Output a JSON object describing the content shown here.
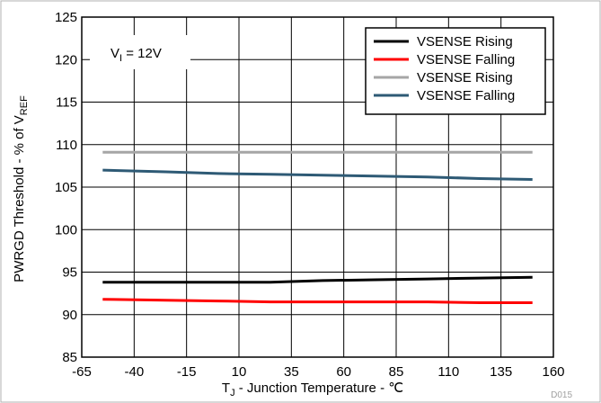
{
  "chart_data": {
    "type": "line",
    "xlabel": {
      "main": "T",
      "sub": "J",
      "rest": " - Junction Temperature - ℃"
    },
    "ylabel": {
      "main": "PWRGD Threshold - % of V",
      "sub": "REF"
    },
    "xlim": [
      -65,
      160
    ],
    "ylim": [
      85,
      125
    ],
    "xticks": [
      -65,
      -40,
      -15,
      10,
      35,
      60,
      85,
      110,
      135,
      160
    ],
    "yticks": [
      85,
      90,
      95,
      100,
      105,
      110,
      115,
      120,
      125
    ],
    "grid": true,
    "legend_position": "top-right",
    "annotation": {
      "main": "V",
      "sub": "I",
      "rest": " = 12V"
    },
    "figure_id": "D015",
    "series": [
      {
        "name": "VSENSE Rising",
        "color": "#000000",
        "x": [
          -55,
          -25,
          0,
          25,
          50,
          75,
          100,
          125,
          150
        ],
        "y": [
          93.8,
          93.8,
          93.8,
          93.8,
          94.0,
          94.1,
          94.2,
          94.3,
          94.4
        ]
      },
      {
        "name": "VSENSE Falling",
        "color": "#ff0000",
        "x": [
          -55,
          -25,
          0,
          25,
          50,
          75,
          100,
          125,
          150
        ],
        "y": [
          91.8,
          91.7,
          91.6,
          91.5,
          91.5,
          91.5,
          91.5,
          91.4,
          91.4
        ]
      },
      {
        "name": "VSENSE Rising",
        "color": "#a6a6a6",
        "x": [
          -55,
          -25,
          0,
          25,
          50,
          75,
          100,
          125,
          150
        ],
        "y": [
          109.1,
          109.1,
          109.1,
          109.1,
          109.1,
          109.1,
          109.1,
          109.1,
          109.1
        ]
      },
      {
        "name": "VSENSE Falling",
        "color": "#2e5a75",
        "x": [
          -55,
          -25,
          0,
          25,
          50,
          75,
          100,
          125,
          150
        ],
        "y": [
          107.0,
          106.8,
          106.6,
          106.5,
          106.4,
          106.3,
          106.2,
          106.0,
          105.9
        ]
      }
    ]
  }
}
